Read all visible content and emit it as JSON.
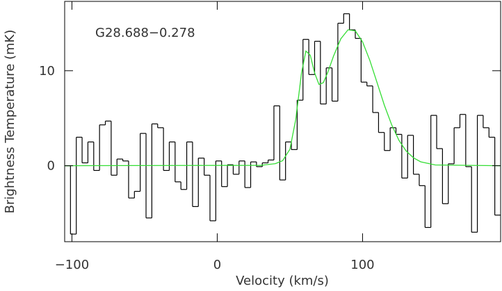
{
  "chart_data": {
    "type": "spectrum",
    "annotation": "G28.688−0.278",
    "xlabel": "Velocity (km/s)",
    "ylabel": "Brightness Temperature (mK)",
    "xlim": [
      -105,
      195
    ],
    "ylim": [
      -8,
      17.3
    ],
    "xticks": [
      {
        "value": -100,
        "label": "−100"
      },
      0,
      100
    ],
    "yticks": [
      0,
      10
    ],
    "series": [
      {
        "style": "steps",
        "color": "#000000",
        "x": [
          -103,
          -99,
          -95,
          -91,
          -87,
          -83,
          -79,
          -75,
          -71,
          -67,
          -63,
          -59,
          -55,
          -51,
          -47,
          -43,
          -39,
          -35,
          -31,
          -27,
          -23,
          -19,
          -15,
          -11,
          -7,
          -3,
          1,
          5,
          9,
          13,
          17,
          21,
          25,
          29,
          33,
          37,
          41,
          45,
          49,
          53,
          57,
          61,
          65,
          69,
          73,
          77,
          81,
          85,
          89,
          93,
          97,
          101,
          105,
          109,
          113,
          117,
          121,
          125,
          129,
          133,
          137,
          141,
          145,
          149,
          153,
          157,
          161,
          165,
          169,
          173,
          177,
          181,
          185,
          189,
          193
        ],
        "values": [
          0,
          -7.2,
          3.0,
          0.3,
          2.5,
          -0.5,
          4.3,
          4.7,
          -1.0,
          0.7,
          0.5,
          -3.4,
          -2.7,
          3.4,
          -5.5,
          4.4,
          4.0,
          -0.5,
          2.5,
          -1.7,
          -2.5,
          2.5,
          -4.3,
          0.8,
          -1.0,
          -5.8,
          0.5,
          -2.2,
          0.1,
          -0.9,
          0.5,
          -2.3,
          0.4,
          -0.1,
          0.3,
          0.6,
          6.3,
          -1.5,
          2.5,
          1.7,
          6.9,
          13.3,
          9.6,
          13.1,
          6.5,
          10.3,
          6.8,
          15.0,
          16.0,
          14.3,
          13.4,
          8.8,
          8.4,
          5.6,
          3.5,
          1.6,
          4.0,
          3.3,
          -1.3,
          3.2,
          -0.9,
          -2.1,
          -6.5,
          5.3,
          1.8,
          -4.0,
          0.2,
          4.0,
          5.4,
          -0.1,
          -7.0,
          5.3,
          4.0,
          3.0,
          -5.2
        ]
      },
      {
        "style": "line",
        "color": "#33dd33",
        "x": [
          -105,
          30,
          40,
          45,
          50,
          54,
          58,
          61,
          64,
          67,
          70,
          73,
          76,
          80,
          85,
          90,
          95,
          100,
          105,
          110,
          115,
          120,
          125,
          130,
          135,
          140,
          150,
          195
        ],
        "values": [
          0,
          0.04,
          0.22,
          0.53,
          1.73,
          4.85,
          9.77,
          12.07,
          11.64,
          9.77,
          8.56,
          8.74,
          9.8,
          11.53,
          13.35,
          14.31,
          14.2,
          13.04,
          11.09,
          8.74,
          6.37,
          4.32,
          2.68,
          1.55,
          0.83,
          0.41,
          0.08,
          0
        ]
      }
    ]
  }
}
